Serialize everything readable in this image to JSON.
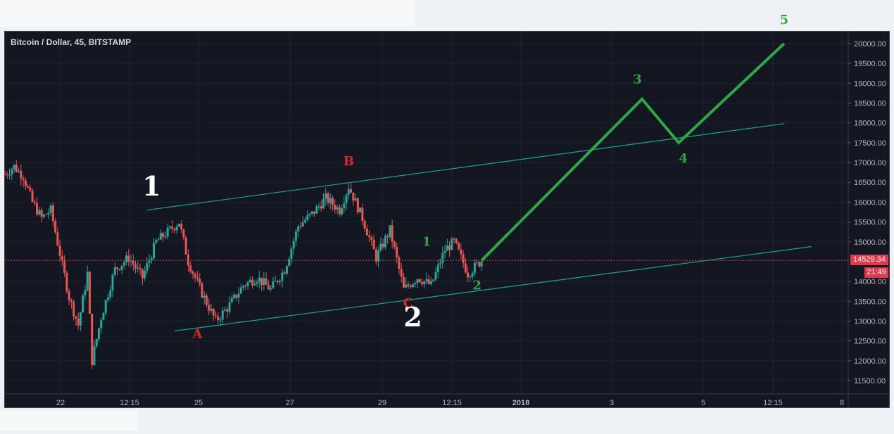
{
  "window": {
    "symbol_title": "Bitcoin / Dollar, 45, BITSTAMP"
  },
  "price_scale": {
    "labels": [
      "20000.00",
      "19500.00",
      "19000.00",
      "18500.00",
      "18000.00",
      "17500.00",
      "17000.00",
      "16500.00",
      "16000.00",
      "15500.00",
      "15000.00",
      "14000.00",
      "13500.00",
      "13000.00",
      "12500.00",
      "12000.00",
      "11500.00"
    ],
    "last_price": "14529.34",
    "countdown": "21:49"
  },
  "time_scale": {
    "labels": [
      "22",
      "12:15",
      "25",
      "27",
      "29",
      "12:15",
      "2018",
      "3",
      "5",
      "12:15",
      "8"
    ]
  },
  "colors": {
    "background": "#131722",
    "up_candle": "#26a69a",
    "down_candle": "#ef5350",
    "channel_line": "#1fa58f",
    "projection": "#2fa843",
    "label_white": "#ffffff",
    "label_red": "#e0262b",
    "label_green": "#2fa843",
    "last_price": "#e0384d"
  },
  "chart_data": {
    "type": "candlestick",
    "title": "Bitcoin / Dollar, 45, BITSTAMP",
    "ylim": [
      11350,
      20300
    ],
    "y_ticks": [
      11500,
      12000,
      12500,
      13000,
      13500,
      14000,
      14500,
      15000,
      15500,
      16000,
      16500,
      17000,
      17500,
      18000,
      18500,
      19000,
      19500,
      20000
    ],
    "close_path": [
      {
        "x": 0,
        "y": 16700
      },
      {
        "x": 2,
        "y": 16900
      },
      {
        "x": 4,
        "y": 16650
      },
      {
        "x": 6,
        "y": 16000
      },
      {
        "x": 8,
        "y": 15600
      },
      {
        "x": 10,
        "y": 15800
      },
      {
        "x": 12,
        "y": 14700
      },
      {
        "x": 14,
        "y": 13600
      },
      {
        "x": 16,
        "y": 12900
      },
      {
        "x": 18,
        "y": 14200
      },
      {
        "x": 19,
        "y": 12000
      },
      {
        "x": 21,
        "y": 13100
      },
      {
        "x": 24,
        "y": 14300
      },
      {
        "x": 27,
        "y": 14600
      },
      {
        "x": 30,
        "y": 14100
      },
      {
        "x": 33,
        "y": 15000
      },
      {
        "x": 36,
        "y": 15300
      },
      {
        "x": 38,
        "y": 15500
      },
      {
        "x": 40,
        "y": 14500
      },
      {
        "x": 43,
        "y": 13700
      },
      {
        "x": 46,
        "y": 13000
      },
      {
        "x": 49,
        "y": 13400
      },
      {
        "x": 52,
        "y": 13900
      },
      {
        "x": 55,
        "y": 14100
      },
      {
        "x": 58,
        "y": 13800
      },
      {
        "x": 61,
        "y": 14300
      },
      {
        "x": 64,
        "y": 15400
      },
      {
        "x": 67,
        "y": 15700
      },
      {
        "x": 70,
        "y": 16100
      },
      {
        "x": 73,
        "y": 15800
      },
      {
        "x": 75,
        "y": 16400
      },
      {
        "x": 78,
        "y": 15600
      },
      {
        "x": 81,
        "y": 14600
      },
      {
        "x": 84,
        "y": 15300
      },
      {
        "x": 87,
        "y": 13800
      },
      {
        "x": 90,
        "y": 14100
      },
      {
        "x": 93,
        "y": 13900
      },
      {
        "x": 96,
        "y": 14800
      },
      {
        "x": 98,
        "y": 15000
      },
      {
        "x": 101,
        "y": 14200
      },
      {
        "x": 104,
        "y": 14529
      }
    ],
    "channel_lines": [
      {
        "from": {
          "x": 31,
          "y": 15800
        },
        "to": {
          "x": 170,
          "y": 17980
        }
      },
      {
        "from": {
          "x": 37,
          "y": 12750
        },
        "to": {
          "x": 176,
          "y": 14880
        }
      }
    ],
    "projection_path": [
      {
        "x": 104,
        "y": 14529
      },
      {
        "x": 139,
        "y": 18600
      },
      {
        "x": 147,
        "y": 17500
      },
      {
        "x": 170,
        "y": 20000
      }
    ],
    "wave_labels": [
      {
        "text": "1",
        "color": "white",
        "x": 32,
        "y": 16170
      },
      {
        "text": "2",
        "color": "white",
        "x": 89,
        "y": 12870
      },
      {
        "text": "A",
        "color": "red",
        "x": 42,
        "y": 12570
      },
      {
        "text": "B",
        "color": "red",
        "x": 75,
        "y": 16930
      },
      {
        "text": "C",
        "color": "red",
        "x": 88,
        "y": 13350
      },
      {
        "text": "1",
        "color": "green",
        "x": 92,
        "y": 14900
      },
      {
        "text": "2",
        "color": "green",
        "x": 103,
        "y": 13800
      },
      {
        "text": "3",
        "color": "green",
        "x": 138,
        "y": 19000
      },
      {
        "text": "4",
        "color": "green",
        "x": 148,
        "y": 17000
      },
      {
        "text": "5",
        "color": "green",
        "x": 170,
        "y": 20500
      }
    ],
    "last_price": 14529.34
  }
}
